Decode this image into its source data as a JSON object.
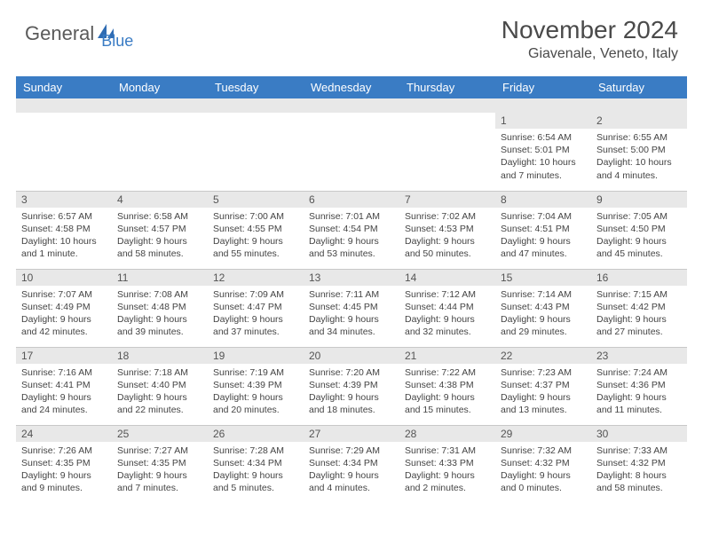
{
  "logo": {
    "text1": "General",
    "text2": "Blue",
    "icon_color": "#2f6cb3"
  },
  "title": "November 2024",
  "location": "Giavenale, Veneto, Italy",
  "colors": {
    "header_bg": "#3a7cc4",
    "header_text": "#ffffff",
    "daynum_bg": "#e8e8e8",
    "border": "#c8c8c8",
    "body_text": "#444444"
  },
  "day_headers": [
    "Sunday",
    "Monday",
    "Tuesday",
    "Wednesday",
    "Thursday",
    "Friday",
    "Saturday"
  ],
  "weeks": [
    [
      {
        "n": "",
        "sr": "",
        "ss": "",
        "dl": ""
      },
      {
        "n": "",
        "sr": "",
        "ss": "",
        "dl": ""
      },
      {
        "n": "",
        "sr": "",
        "ss": "",
        "dl": ""
      },
      {
        "n": "",
        "sr": "",
        "ss": "",
        "dl": ""
      },
      {
        "n": "",
        "sr": "",
        "ss": "",
        "dl": ""
      },
      {
        "n": "1",
        "sr": "Sunrise: 6:54 AM",
        "ss": "Sunset: 5:01 PM",
        "dl": "Daylight: 10 hours and 7 minutes."
      },
      {
        "n": "2",
        "sr": "Sunrise: 6:55 AM",
        "ss": "Sunset: 5:00 PM",
        "dl": "Daylight: 10 hours and 4 minutes."
      }
    ],
    [
      {
        "n": "3",
        "sr": "Sunrise: 6:57 AM",
        "ss": "Sunset: 4:58 PM",
        "dl": "Daylight: 10 hours and 1 minute."
      },
      {
        "n": "4",
        "sr": "Sunrise: 6:58 AM",
        "ss": "Sunset: 4:57 PM",
        "dl": "Daylight: 9 hours and 58 minutes."
      },
      {
        "n": "5",
        "sr": "Sunrise: 7:00 AM",
        "ss": "Sunset: 4:55 PM",
        "dl": "Daylight: 9 hours and 55 minutes."
      },
      {
        "n": "6",
        "sr": "Sunrise: 7:01 AM",
        "ss": "Sunset: 4:54 PM",
        "dl": "Daylight: 9 hours and 53 minutes."
      },
      {
        "n": "7",
        "sr": "Sunrise: 7:02 AM",
        "ss": "Sunset: 4:53 PM",
        "dl": "Daylight: 9 hours and 50 minutes."
      },
      {
        "n": "8",
        "sr": "Sunrise: 7:04 AM",
        "ss": "Sunset: 4:51 PM",
        "dl": "Daylight: 9 hours and 47 minutes."
      },
      {
        "n": "9",
        "sr": "Sunrise: 7:05 AM",
        "ss": "Sunset: 4:50 PM",
        "dl": "Daylight: 9 hours and 45 minutes."
      }
    ],
    [
      {
        "n": "10",
        "sr": "Sunrise: 7:07 AM",
        "ss": "Sunset: 4:49 PM",
        "dl": "Daylight: 9 hours and 42 minutes."
      },
      {
        "n": "11",
        "sr": "Sunrise: 7:08 AM",
        "ss": "Sunset: 4:48 PM",
        "dl": "Daylight: 9 hours and 39 minutes."
      },
      {
        "n": "12",
        "sr": "Sunrise: 7:09 AM",
        "ss": "Sunset: 4:47 PM",
        "dl": "Daylight: 9 hours and 37 minutes."
      },
      {
        "n": "13",
        "sr": "Sunrise: 7:11 AM",
        "ss": "Sunset: 4:45 PM",
        "dl": "Daylight: 9 hours and 34 minutes."
      },
      {
        "n": "14",
        "sr": "Sunrise: 7:12 AM",
        "ss": "Sunset: 4:44 PM",
        "dl": "Daylight: 9 hours and 32 minutes."
      },
      {
        "n": "15",
        "sr": "Sunrise: 7:14 AM",
        "ss": "Sunset: 4:43 PM",
        "dl": "Daylight: 9 hours and 29 minutes."
      },
      {
        "n": "16",
        "sr": "Sunrise: 7:15 AM",
        "ss": "Sunset: 4:42 PM",
        "dl": "Daylight: 9 hours and 27 minutes."
      }
    ],
    [
      {
        "n": "17",
        "sr": "Sunrise: 7:16 AM",
        "ss": "Sunset: 4:41 PM",
        "dl": "Daylight: 9 hours and 24 minutes."
      },
      {
        "n": "18",
        "sr": "Sunrise: 7:18 AM",
        "ss": "Sunset: 4:40 PM",
        "dl": "Daylight: 9 hours and 22 minutes."
      },
      {
        "n": "19",
        "sr": "Sunrise: 7:19 AM",
        "ss": "Sunset: 4:39 PM",
        "dl": "Daylight: 9 hours and 20 minutes."
      },
      {
        "n": "20",
        "sr": "Sunrise: 7:20 AM",
        "ss": "Sunset: 4:39 PM",
        "dl": "Daylight: 9 hours and 18 minutes."
      },
      {
        "n": "21",
        "sr": "Sunrise: 7:22 AM",
        "ss": "Sunset: 4:38 PM",
        "dl": "Daylight: 9 hours and 15 minutes."
      },
      {
        "n": "22",
        "sr": "Sunrise: 7:23 AM",
        "ss": "Sunset: 4:37 PM",
        "dl": "Daylight: 9 hours and 13 minutes."
      },
      {
        "n": "23",
        "sr": "Sunrise: 7:24 AM",
        "ss": "Sunset: 4:36 PM",
        "dl": "Daylight: 9 hours and 11 minutes."
      }
    ],
    [
      {
        "n": "24",
        "sr": "Sunrise: 7:26 AM",
        "ss": "Sunset: 4:35 PM",
        "dl": "Daylight: 9 hours and 9 minutes."
      },
      {
        "n": "25",
        "sr": "Sunrise: 7:27 AM",
        "ss": "Sunset: 4:35 PM",
        "dl": "Daylight: 9 hours and 7 minutes."
      },
      {
        "n": "26",
        "sr": "Sunrise: 7:28 AM",
        "ss": "Sunset: 4:34 PM",
        "dl": "Daylight: 9 hours and 5 minutes."
      },
      {
        "n": "27",
        "sr": "Sunrise: 7:29 AM",
        "ss": "Sunset: 4:34 PM",
        "dl": "Daylight: 9 hours and 4 minutes."
      },
      {
        "n": "28",
        "sr": "Sunrise: 7:31 AM",
        "ss": "Sunset: 4:33 PM",
        "dl": "Daylight: 9 hours and 2 minutes."
      },
      {
        "n": "29",
        "sr": "Sunrise: 7:32 AM",
        "ss": "Sunset: 4:32 PM",
        "dl": "Daylight: 9 hours and 0 minutes."
      },
      {
        "n": "30",
        "sr": "Sunrise: 7:33 AM",
        "ss": "Sunset: 4:32 PM",
        "dl": "Daylight: 8 hours and 58 minutes."
      }
    ]
  ]
}
